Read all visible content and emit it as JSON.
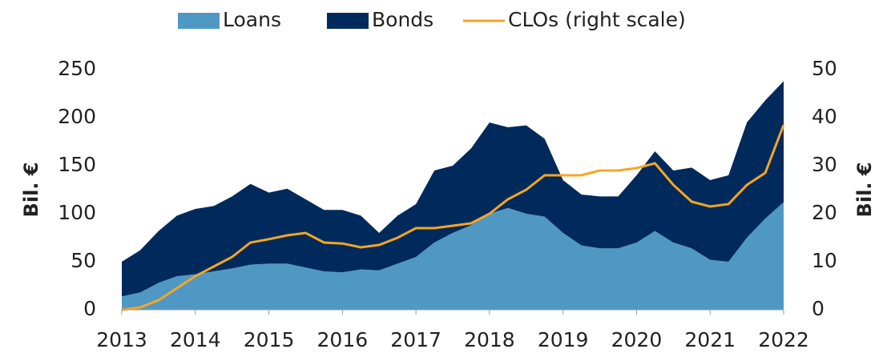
{
  "chart_data": {
    "type": "stacked-area-line",
    "x": [
      2013,
      2013.25,
      2013.5,
      2013.75,
      2014,
      2014.25,
      2014.5,
      2014.75,
      2015,
      2015.25,
      2015.5,
      2015.75,
      2016,
      2016.25,
      2016.5,
      2016.75,
      2017,
      2017.25,
      2017.5,
      2017.75,
      2018,
      2018.25,
      2018.5,
      2018.75,
      2019,
      2019.25,
      2019.5,
      2019.75,
      2020,
      2020.25,
      2020.5,
      2020.75,
      2021,
      2021.25,
      2021.5,
      2021.75,
      2022
    ],
    "series": [
      {
        "name": "Loans",
        "color": "#5098c4",
        "values": [
          14,
          18,
          28,
          35,
          37,
          40,
          43,
          47,
          48,
          48,
          44,
          40,
          39,
          42,
          41,
          48,
          55,
          70,
          80,
          88,
          100,
          106,
          100,
          97,
          80,
          67,
          64,
          64,
          70,
          82,
          70,
          64,
          52,
          50,
          75,
          95,
          112
        ]
      },
      {
        "name": "Bonds",
        "color": "#002a5c",
        "values": [
          36,
          44,
          54,
          63,
          68,
          68,
          75,
          84,
          74,
          78,
          71,
          64,
          65,
          56,
          39,
          50,
          55,
          75,
          70,
          80,
          95,
          84,
          92,
          81,
          55,
          53,
          54,
          54,
          70,
          83,
          75,
          84,
          83,
          90,
          120,
          123,
          126
        ]
      },
      {
        "name": "CLOs (right scale)",
        "color": "#f5a623",
        "axis": "y2",
        "values": [
          0,
          0.5,
          2,
          4.5,
          7,
          9,
          11,
          14,
          14.7,
          15.5,
          16,
          14,
          13.8,
          13,
          13.5,
          15,
          17,
          17,
          17.5,
          18,
          20,
          23,
          25,
          28,
          28,
          28,
          29,
          29,
          29.5,
          30.5,
          26,
          22.5,
          21.5,
          22,
          26,
          28.5,
          38.5
        ]
      }
    ],
    "xlim": [
      2013,
      2022
    ],
    "xticks": [
      2013,
      2014,
      2015,
      2016,
      2017,
      2018,
      2019,
      2020,
      2021,
      2022
    ],
    "ylim": [
      0,
      250
    ],
    "yticks": [
      0,
      50,
      100,
      150,
      200,
      250
    ],
    "y2lim": [
      0,
      50
    ],
    "y2ticks": [
      0,
      10,
      20,
      30,
      40,
      50
    ],
    "ylabel": "Bil. €",
    "y2label": "Bil. €",
    "legend": "top"
  }
}
